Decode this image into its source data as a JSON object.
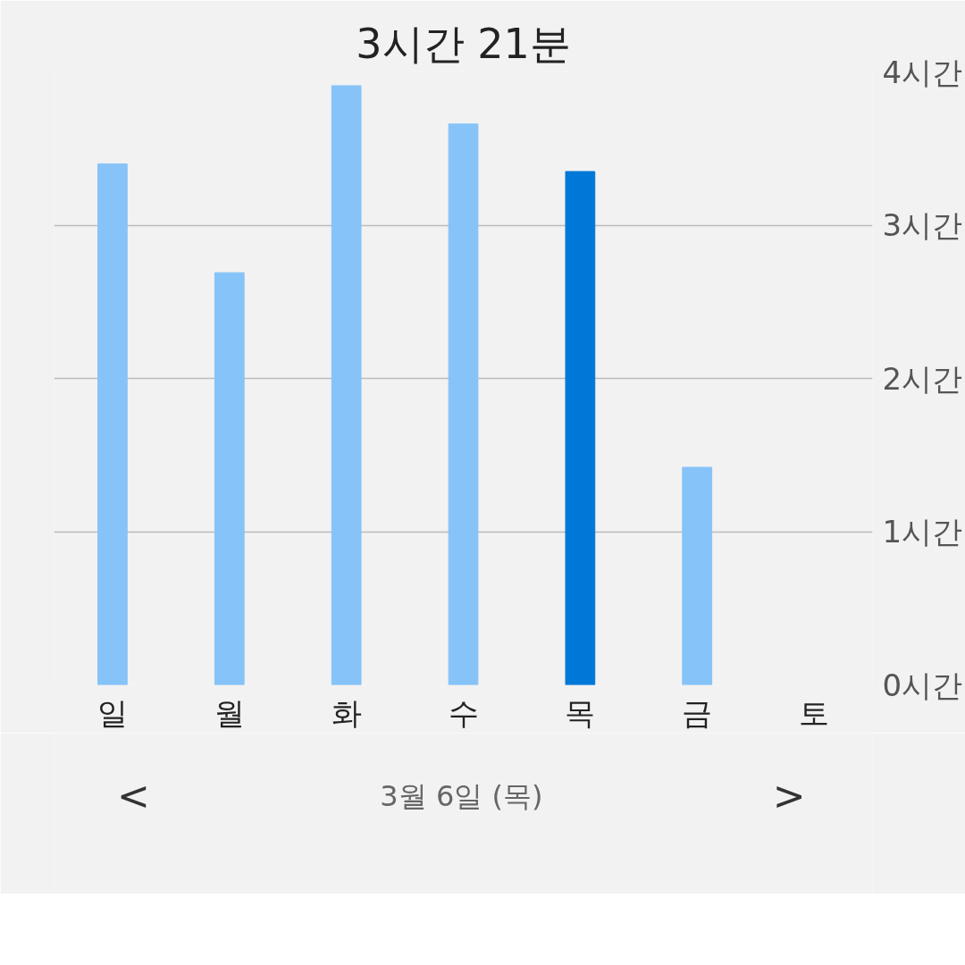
{
  "chart_data": {
    "type": "bar",
    "title": "3시간 21분",
    "categories": [
      "일",
      "월",
      "화",
      "수",
      "목",
      "금",
      "토"
    ],
    "values": [
      3.4,
      2.69,
      3.91,
      3.66,
      3.35,
      1.42,
      null
    ],
    "colors": [
      "#86c3f8",
      "#86c3f8",
      "#86c3f8",
      "#86c3f8",
      "#0078d7",
      "#86c3f8",
      "#86c3f8"
    ],
    "ylim": [
      0,
      4
    ],
    "yticks": [
      {
        "value": 0,
        "label": "0시간"
      },
      {
        "value": 1,
        "label": "1시간"
      },
      {
        "value": 2,
        "label": "2시간"
      },
      {
        "value": 3,
        "label": "3시간"
      },
      {
        "value": 4,
        "label": "4시간"
      }
    ],
    "grid": "y",
    "annotations": [
      "<",
      "3월 6일 (목)",
      ">"
    ]
  }
}
